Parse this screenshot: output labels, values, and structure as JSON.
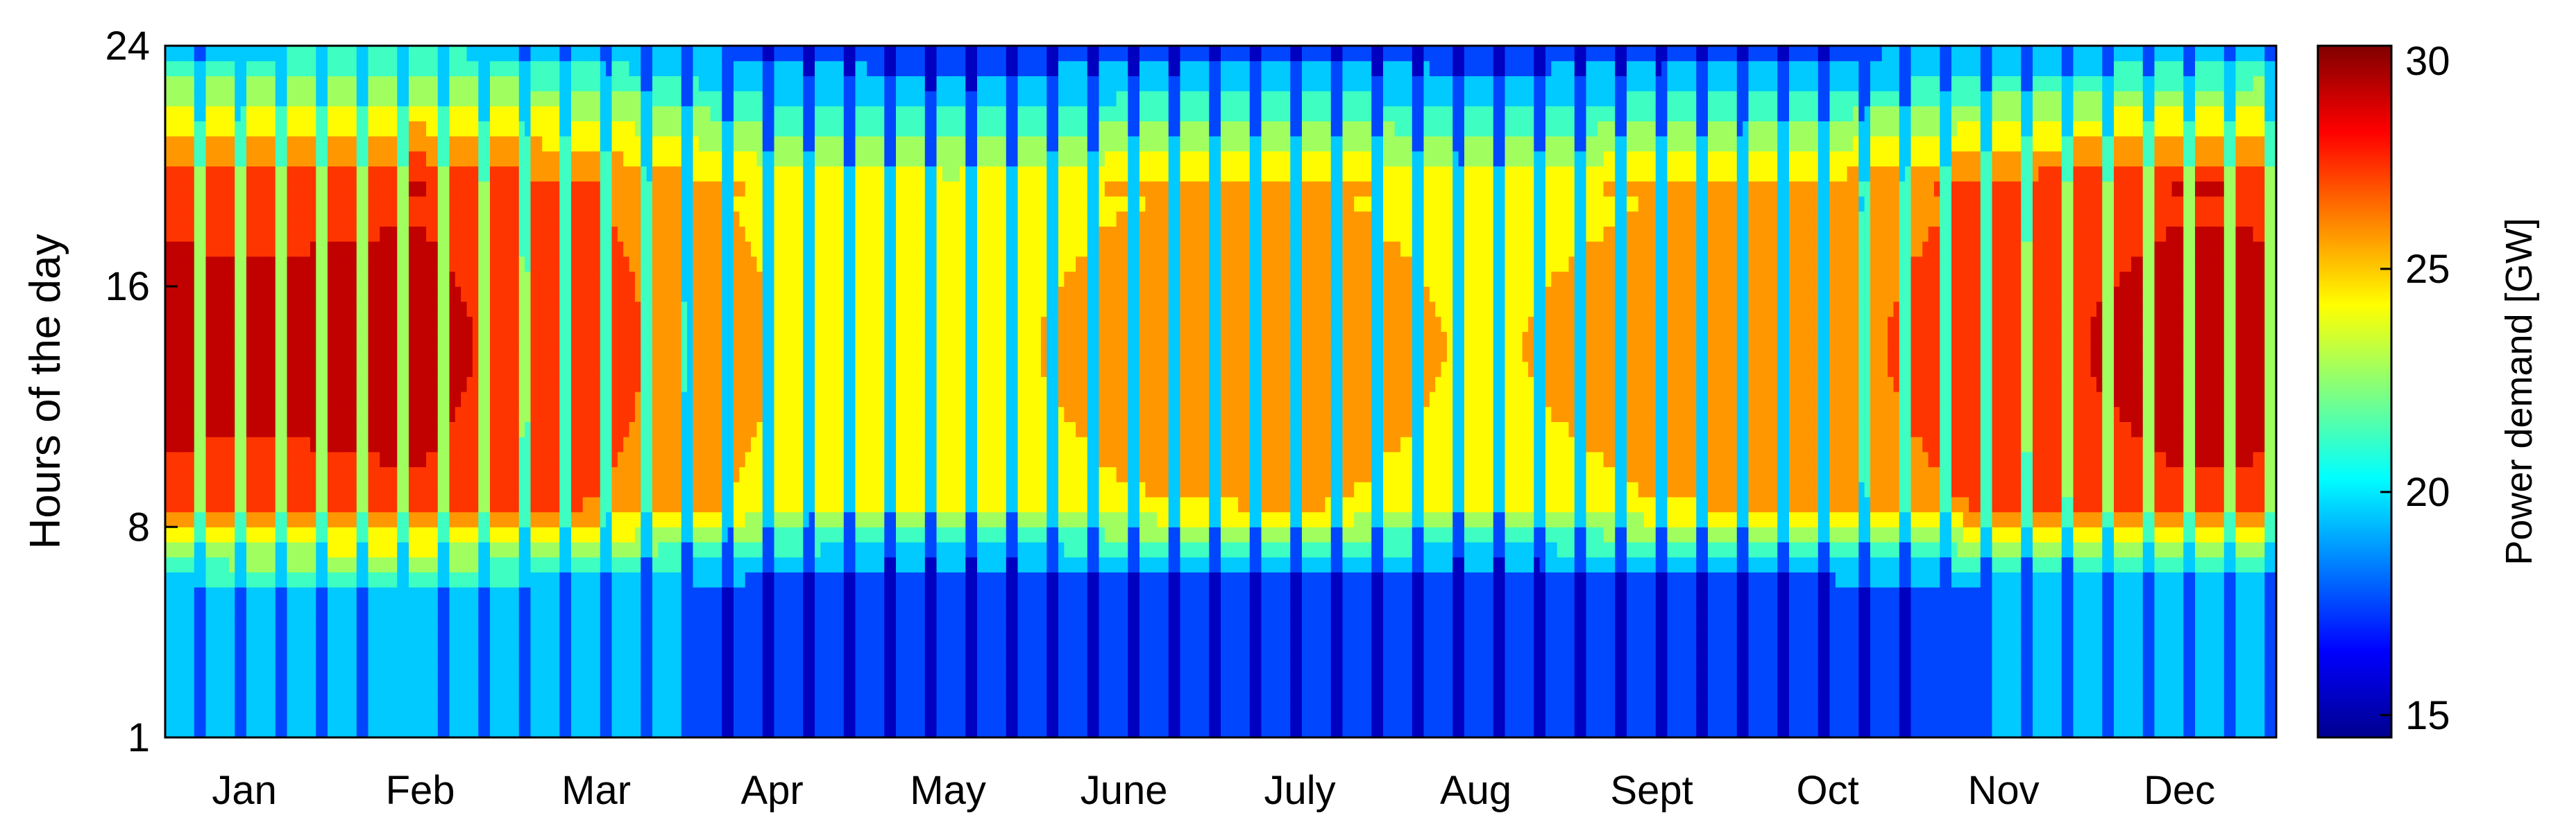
{
  "chart_data": {
    "type": "heatmap",
    "title": "",
    "xlabel": "",
    "ylabel": "Hours of the day",
    "x_tick_labels": [
      "Jan",
      "Feb",
      "Mar",
      "Apr",
      "May",
      "June",
      "July",
      "Aug",
      "Sept",
      "Oct",
      "Nov",
      "Dec"
    ],
    "y_tick_labels": [
      "1",
      "8",
      "16",
      "24"
    ],
    "y_ticks": [
      1,
      8,
      16,
      24
    ],
    "ylim": [
      1,
      24
    ],
    "xlim": [
      1,
      365
    ],
    "grid": false,
    "colorbar": {
      "label": "Power demand [GW]",
      "ticks": [
        15,
        20,
        25,
        30
      ],
      "tick_labels": [
        "15",
        "20",
        "25",
        "30"
      ],
      "range": [
        14.5,
        30
      ],
      "colormap": "jet",
      "levels": [
        14.5,
        16.5,
        18.5,
        20.5,
        22.0,
        23.5,
        25.0,
        26.5,
        28.0,
        30.0
      ]
    },
    "seasonal_peak_GW": [
      {
        "month": "Jan",
        "peak": 28.2
      },
      {
        "month": "Feb",
        "peak": 28.4
      },
      {
        "month": "Mar",
        "peak": 27.0
      },
      {
        "month": "Apr",
        "peak": 25.0
      },
      {
        "month": "May",
        "peak": 24.5
      },
      {
        "month": "June",
        "peak": 25.5
      },
      {
        "month": "July",
        "peak": 25.8
      },
      {
        "month": "Aug",
        "peak": 24.8
      },
      {
        "month": "Sept",
        "peak": 25.6
      },
      {
        "month": "Oct",
        "peak": 26.0
      },
      {
        "month": "Nov",
        "peak": 27.6
      },
      {
        "month": "Dec",
        "peak": 28.5
      }
    ],
    "seasonal_night_GW": [
      {
        "month": "Jan",
        "night": 20.0
      },
      {
        "month": "Feb",
        "night": 20.2
      },
      {
        "month": "Mar",
        "night": 19.6
      },
      {
        "month": "Apr",
        "night": 17.5
      },
      {
        "month": "May",
        "night": 17.0
      },
      {
        "month": "June",
        "night": 17.3
      },
      {
        "month": "July",
        "night": 17.6
      },
      {
        "month": "Aug",
        "night": 17.0
      },
      {
        "month": "Sept",
        "night": 17.4
      },
      {
        "month": "Oct",
        "night": 17.8
      },
      {
        "month": "Nov",
        "night": 18.6
      },
      {
        "month": "Dec",
        "night": 19.2
      }
    ],
    "weekend_drop_GW": 5.5
  }
}
